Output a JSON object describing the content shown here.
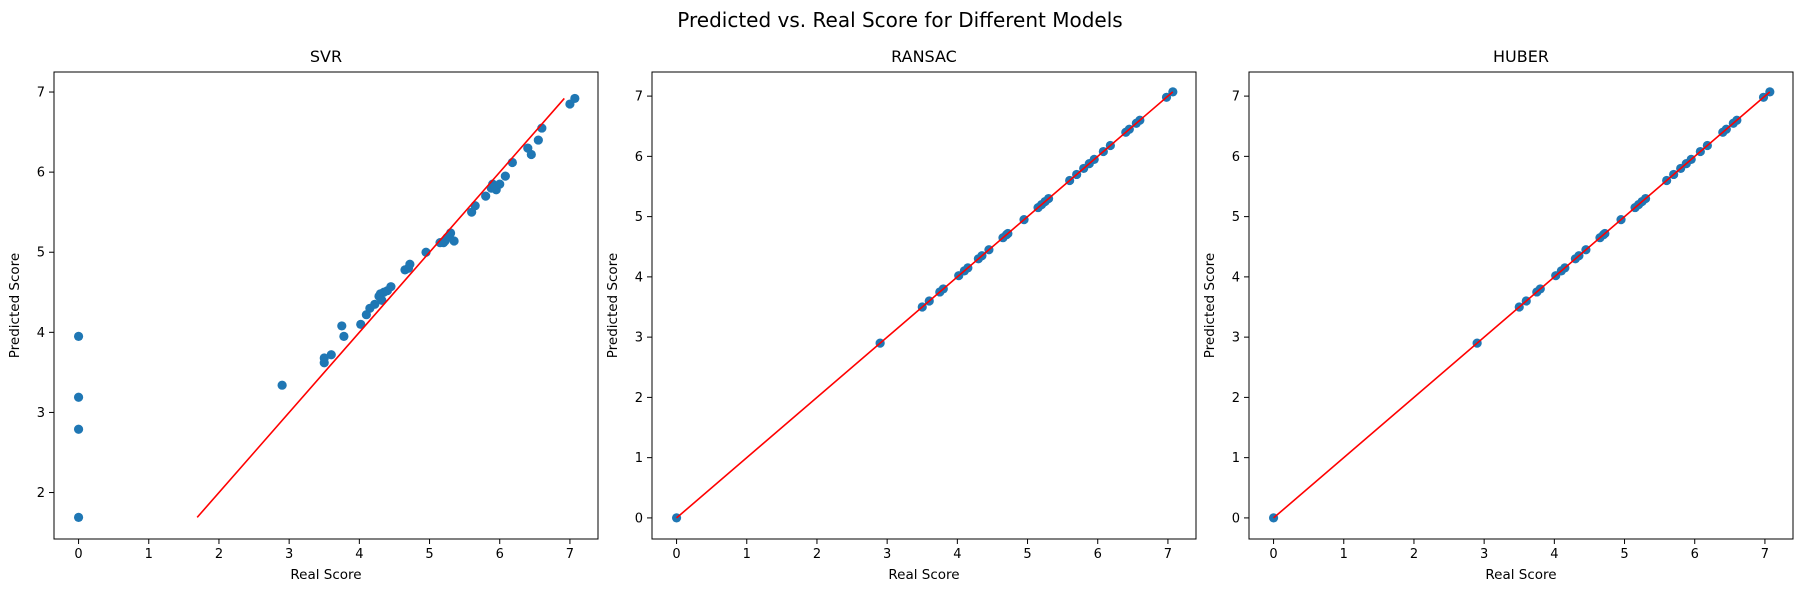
{
  "figure": {
    "title": "Predicted vs. Real Score for Different Models"
  },
  "colors": {
    "points": "#1f77b4",
    "fit_line": "#ff0000",
    "axes": "#000000",
    "background": "#ffffff"
  },
  "chart_data": [
    {
      "type": "scatter",
      "title": "SVR",
      "xlabel": "Real Score",
      "ylabel": "Predicted Score",
      "xlim": [
        -0.35,
        7.4
      ],
      "ylim": [
        1.42,
        7.25
      ],
      "xticks": [
        0,
        1,
        2,
        3,
        4,
        5,
        6,
        7
      ],
      "yticks": [
        2,
        3,
        4,
        5,
        6,
        7
      ],
      "grid": false,
      "legend": "none",
      "series": [
        {
          "kind": "points",
          "x": [
            0,
            0,
            0,
            0,
            2.9,
            3.5,
            3.5,
            3.6,
            3.75,
            3.78,
            4.02,
            4.1,
            4.15,
            4.22,
            4.28,
            4.3,
            4.32,
            4.35,
            4.4,
            4.45,
            4.65,
            4.7,
            4.72,
            4.95,
            5.15,
            5.2,
            5.22,
            5.25,
            5.28,
            5.3,
            5.35,
            5.6,
            5.65,
            5.8,
            5.88,
            5.9,
            5.93,
            5.95,
            6.0,
            6.08,
            6.18,
            6.4,
            6.45,
            6.55,
            6.6,
            7.0,
            7.07
          ],
          "y": [
            3.95,
            3.19,
            2.79,
            1.69,
            3.34,
            3.68,
            3.62,
            3.72,
            4.08,
            3.95,
            4.1,
            4.22,
            4.3,
            4.35,
            4.45,
            4.48,
            4.4,
            4.5,
            4.52,
            4.57,
            4.78,
            4.8,
            4.85,
            5.0,
            5.12,
            5.12,
            5.14,
            5.18,
            5.2,
            5.24,
            5.14,
            5.5,
            5.58,
            5.7,
            5.8,
            5.85,
            5.82,
            5.78,
            5.85,
            5.95,
            6.12,
            6.3,
            6.22,
            6.4,
            6.55,
            6.85,
            6.92
          ]
        },
        {
          "kind": "line",
          "x": [
            1.69,
            6.92
          ],
          "y": [
            1.69,
            6.92
          ]
        }
      ]
    },
    {
      "type": "scatter",
      "title": "RANSAC",
      "xlabel": "Real Score",
      "ylabel": "Predicted Score",
      "xlim": [
        -0.35,
        7.4
      ],
      "ylim": [
        -0.35,
        7.4
      ],
      "xticks": [
        0,
        1,
        2,
        3,
        4,
        5,
        6,
        7
      ],
      "yticks": [
        0,
        1,
        2,
        3,
        4,
        5,
        6,
        7
      ],
      "grid": false,
      "legend": "none",
      "series": [
        {
          "kind": "points",
          "x": [
            0,
            2.9,
            3.5,
            3.6,
            3.75,
            3.8,
            4.02,
            4.1,
            4.15,
            4.3,
            4.35,
            4.45,
            4.65,
            4.7,
            4.72,
            4.95,
            5.15,
            5.2,
            5.25,
            5.3,
            5.6,
            5.7,
            5.8,
            5.88,
            5.95,
            6.08,
            6.18,
            6.4,
            6.45,
            6.55,
            6.6,
            6.98,
            7.07
          ],
          "y": [
            0,
            2.9,
            3.5,
            3.6,
            3.75,
            3.8,
            4.02,
            4.1,
            4.15,
            4.3,
            4.35,
            4.45,
            4.65,
            4.7,
            4.72,
            4.95,
            5.15,
            5.2,
            5.25,
            5.3,
            5.6,
            5.7,
            5.8,
            5.88,
            5.95,
            6.08,
            6.18,
            6.4,
            6.45,
            6.55,
            6.6,
            6.98,
            7.07
          ]
        },
        {
          "kind": "line",
          "x": [
            0,
            7.07
          ],
          "y": [
            0,
            7.07
          ]
        }
      ]
    },
    {
      "type": "scatter",
      "title": "HUBER",
      "xlabel": "Real Score",
      "ylabel": "Predicted Score",
      "xlim": [
        -0.35,
        7.4
      ],
      "ylim": [
        -0.35,
        7.4
      ],
      "xticks": [
        0,
        1,
        2,
        3,
        4,
        5,
        6,
        7
      ],
      "yticks": [
        0,
        1,
        2,
        3,
        4,
        5,
        6,
        7
      ],
      "grid": false,
      "legend": "none",
      "series": [
        {
          "kind": "points",
          "x": [
            0,
            2.9,
            3.5,
            3.6,
            3.75,
            3.8,
            4.02,
            4.1,
            4.15,
            4.3,
            4.35,
            4.45,
            4.65,
            4.7,
            4.72,
            4.95,
            5.15,
            5.2,
            5.25,
            5.3,
            5.6,
            5.7,
            5.8,
            5.88,
            5.95,
            6.08,
            6.18,
            6.4,
            6.45,
            6.55,
            6.6,
            6.98,
            7.07
          ],
          "y": [
            0,
            2.9,
            3.5,
            3.6,
            3.75,
            3.8,
            4.02,
            4.1,
            4.15,
            4.3,
            4.35,
            4.45,
            4.65,
            4.7,
            4.72,
            4.95,
            5.15,
            5.2,
            5.25,
            5.3,
            5.6,
            5.7,
            5.8,
            5.88,
            5.95,
            6.08,
            6.18,
            6.4,
            6.45,
            6.55,
            6.6,
            6.98,
            7.07
          ]
        },
        {
          "kind": "line",
          "x": [
            0,
            7.07
          ],
          "y": [
            0,
            7.07
          ]
        }
      ]
    }
  ]
}
